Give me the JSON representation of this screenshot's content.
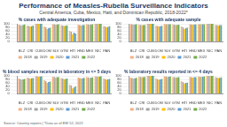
{
  "title": "Performance of Measles-Rubella Surveillance Indicators",
  "subtitle": "Central America, Cuba, Mexico, Haiti, and Dominican Republic, 2018-2022*",
  "source": "Source: Country reports | *Data as of EW 52, 2022",
  "chart_data": [
    {
      "type": "bar",
      "title": "% cases with adequate investigation",
      "categories": [
        "BLZ",
        "CRI",
        "CUB",
        "DOM",
        "SLV",
        "GTM",
        "HTI",
        "HND",
        "MEX",
        "NIC",
        "PAN"
      ],
      "series": [
        {
          "name": "2018",
          "color": "#f4b183",
          "values": [
            95,
            90,
            100,
            85,
            98,
            92,
            60,
            95,
            97,
            100,
            88
          ]
        },
        {
          "name": "2019",
          "color": "#a5a5a5",
          "values": [
            92,
            88,
            100,
            80,
            97,
            90,
            55,
            93,
            96,
            100,
            85
          ]
        },
        {
          "name": "2020",
          "color": "#ffc000",
          "values": [
            90,
            85,
            100,
            70,
            95,
            88,
            40,
            90,
            95,
            99,
            80
          ]
        },
        {
          "name": "2021",
          "color": "#5b9bd5",
          "values": [
            94,
            87,
            100,
            75,
            96,
            89,
            50,
            92,
            96,
            100,
            83
          ]
        },
        {
          "name": "2022",
          "color": "#70ad47",
          "values": [
            96,
            90,
            100,
            78,
            97,
            91,
            45,
            94,
            97,
            100,
            86
          ]
        }
      ],
      "ylim": [
        0,
        100
      ],
      "yticks": [
        0,
        20,
        40,
        60,
        80,
        100
      ],
      "grid": true,
      "legend": "bottom"
    },
    {
      "type": "bar",
      "title": "% cases with adequate sample",
      "categories": [
        "BLZ",
        "CRI",
        "CUB",
        "DOM",
        "SLV",
        "GTM",
        "HTI",
        "HND",
        "MEX",
        "NIC",
        "PAN"
      ],
      "series": [
        {
          "name": "2018",
          "color": "#f4b183",
          "values": [
            98,
            95,
            100,
            90,
            99,
            96,
            85,
            97,
            98,
            100,
            94
          ]
        },
        {
          "name": "2019",
          "color": "#a5a5a5",
          "values": [
            97,
            94,
            100,
            88,
            98,
            95,
            80,
            96,
            98,
            100,
            93
          ]
        },
        {
          "name": "2020",
          "color": "#ffc000",
          "values": [
            95,
            92,
            100,
            85,
            97,
            93,
            70,
            95,
            97,
            100,
            90
          ]
        },
        {
          "name": "2021",
          "color": "#5b9bd5",
          "values": [
            96,
            93,
            100,
            87,
            98,
            94,
            75,
            96,
            98,
            100,
            92
          ]
        },
        {
          "name": "2022",
          "color": "#70ad47",
          "values": [
            97,
            94,
            100,
            89,
            98,
            95,
            78,
            96,
            98,
            100,
            93
          ]
        }
      ],
      "ylim": [
        0,
        100
      ],
      "yticks": [
        0,
        20,
        40,
        60,
        80,
        100
      ],
      "grid": true,
      "legend": "bottom"
    },
    {
      "type": "bar",
      "title": "% blood samples received in laboratory in <= 5 days",
      "categories": [
        "BLZ",
        "CRI",
        "CUB",
        "DOM",
        "SLV",
        "GTM",
        "HTI",
        "HND",
        "MEX",
        "NIC",
        "PAN"
      ],
      "series": [
        {
          "name": "2018",
          "color": "#f4b183",
          "values": [
            85,
            90,
            98,
            75,
            95,
            88,
            50,
            90,
            92,
            97,
            85
          ]
        },
        {
          "name": "2019",
          "color": "#a5a5a5",
          "values": [
            82,
            88,
            97,
            70,
            94,
            85,
            45,
            88,
            91,
            96,
            82
          ]
        },
        {
          "name": "2020",
          "color": "#ffc000",
          "values": [
            78,
            84,
            95,
            60,
            90,
            80,
            30,
            85,
            88,
            95,
            78
          ]
        },
        {
          "name": "2021",
          "color": "#5b9bd5",
          "values": [
            80,
            86,
            96,
            65,
            92,
            83,
            35,
            87,
            90,
            96,
            80
          ]
        },
        {
          "name": "2022",
          "color": "#70ad47",
          "values": [
            83,
            88,
            97,
            68,
            93,
            85,
            40,
            89,
            91,
            97,
            83
          ]
        }
      ],
      "ylim": [
        0,
        100
      ],
      "yticks": [
        0,
        20,
        40,
        60,
        80,
        100
      ],
      "grid": true,
      "legend": "bottom"
    },
    {
      "type": "bar",
      "title": "% laboratory results reported in <= 4 days",
      "categories": [
        "BLZ",
        "CRI",
        "CUB",
        "DOM",
        "SLV",
        "GTM",
        "HTI",
        "HND",
        "MEX",
        "NIC",
        "PAN"
      ],
      "series": [
        {
          "name": "2018",
          "color": "#f4b183",
          "values": [
            90,
            95,
            100,
            85,
            97,
            93,
            70,
            94,
            96,
            100,
            92
          ]
        },
        {
          "name": "2019",
          "color": "#a5a5a5",
          "values": [
            88,
            94,
            100,
            82,
            96,
            92,
            65,
            93,
            95,
            100,
            90
          ]
        },
        {
          "name": "2020",
          "color": "#ffc000",
          "values": [
            85,
            92,
            99,
            78,
            94,
            90,
            55,
            90,
            94,
            99,
            88
          ]
        },
        {
          "name": "2021",
          "color": "#5b9bd5",
          "values": [
            87,
            93,
            100,
            80,
            95,
            91,
            60,
            92,
            95,
            100,
            89
          ]
        },
        {
          "name": "2022",
          "color": "#70ad47",
          "values": [
            89,
            94,
            100,
            83,
            96,
            92,
            62,
            93,
            96,
            100,
            91
          ]
        }
      ],
      "ylim": [
        0,
        100
      ],
      "yticks": [
        0,
        20,
        40,
        60,
        80,
        100
      ],
      "grid": true,
      "legend": "bottom"
    }
  ]
}
